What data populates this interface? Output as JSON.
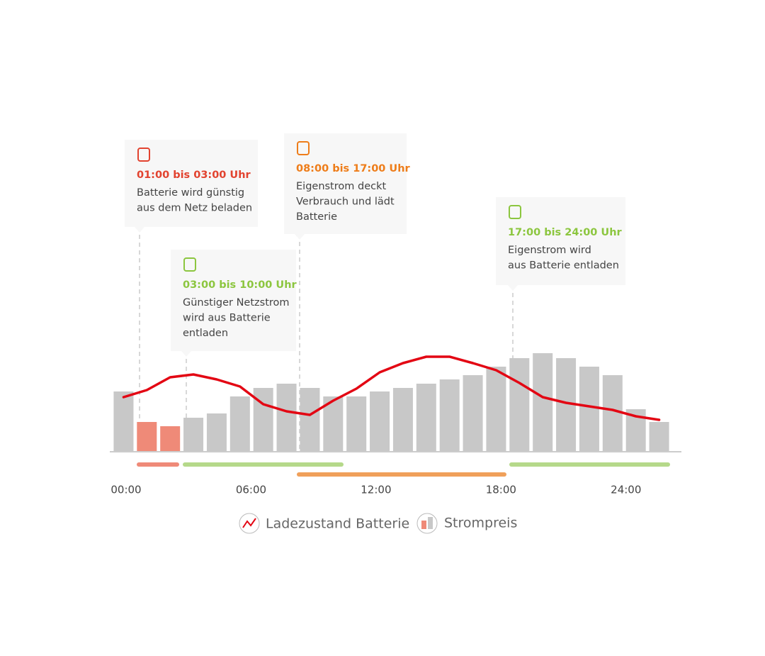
{
  "chart_data": {
    "type": "bar",
    "categories": [
      null,
      null,
      null,
      null,
      null,
      null,
      null,
      null,
      null,
      null,
      null,
      null,
      null,
      null,
      null,
      null,
      null,
      null,
      null,
      null,
      null,
      null,
      null,
      null
    ],
    "series": [
      {
        "name": "Strompreis",
        "type": "bar",
        "color": "#c8c8c8",
        "colors": [
          "#c8c8c8",
          "#ef8a78",
          "#ef8a78",
          "#c8c8c8",
          "#c8c8c8",
          "#c8c8c8",
          "#c8c8c8",
          "#c8c8c8",
          "#c8c8c8",
          "#c8c8c8",
          "#c8c8c8",
          "#c8c8c8",
          "#c8c8c8",
          "#c8c8c8",
          "#c8c8c8",
          "#c8c8c8",
          "#c8c8c8",
          "#c8c8c8",
          "#c8c8c8",
          "#c8c8c8",
          "#c8c8c8",
          "#c8c8c8",
          "#c8c8c8",
          "#c8c8c8"
        ],
        "values": [
          85,
          42,
          36,
          48,
          54,
          78,
          90,
          96,
          90,
          78,
          78,
          85,
          90,
          96,
          102,
          108,
          120,
          132,
          139,
          132,
          120,
          108,
          60,
          42
        ]
      },
      {
        "name": "Ladezustand Batterie",
        "type": "line",
        "color": "#e30613",
        "values": [
          77,
          87,
          105,
          109,
          102,
          92,
          67,
          57,
          52,
          72,
          89,
          112,
          125,
          134,
          134,
          125,
          115,
          97,
          77,
          69,
          64,
          59,
          50,
          45
        ]
      }
    ],
    "ylim": [
      0,
      150
    ],
    "xlim": [
      -0.68,
      26.15
    ],
    "xticks": [
      {
        "value": 0,
        "label": "00:00"
      },
      {
        "value": 6,
        "label": "06:00"
      },
      {
        "value": 12,
        "label": "12:00"
      },
      {
        "value": 18,
        "label": "18:00"
      },
      {
        "value": 24,
        "label": "24:00"
      }
    ],
    "annotations": [
      {
        "title": "01:00 bis 03:00 Uhr",
        "color": "#e2432f",
        "lines": [
          "Batterie wird günstig",
          "aus dem Netz beladen"
        ]
      },
      {
        "title": "03:00 bis 10:00 Uhr",
        "color": "#8cc63f",
        "lines": [
          "Günstiger Netzstrom",
          "wird aus Batterie",
          "entladen"
        ]
      },
      {
        "title": "08:00 bis 17:00 Uhr",
        "color": "#ee7d1a",
        "lines": [
          "Eigenstrom deckt",
          "Verbrauch und lädt",
          "Batterie"
        ]
      },
      {
        "title": "17:00 bis 24:00 Uhr",
        "color": "#8cc63f",
        "lines": [
          "Eigenstrom wird",
          "aus Batterie entladen"
        ]
      }
    ]
  }
}
